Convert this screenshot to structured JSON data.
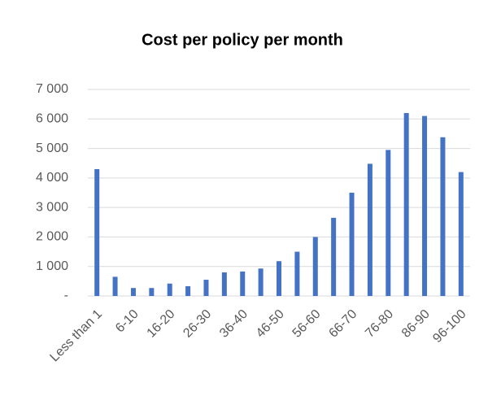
{
  "chart_data": {
    "type": "bar",
    "title": "Cost per policy per month",
    "categories": [
      "Less than 1",
      null,
      "6-10",
      null,
      "16-20",
      null,
      "26-30",
      null,
      "36-40",
      null,
      "46-50",
      null,
      "56-60",
      null,
      "66-70",
      null,
      "76-80",
      null,
      "86-90",
      null,
      "96-100"
    ],
    "values": [
      4300,
      650,
      270,
      270,
      420,
      330,
      550,
      800,
      830,
      930,
      1180,
      1500,
      2000,
      2650,
      3500,
      4480,
      4950,
      6200,
      6100,
      5380,
      4200
    ],
    "color": "#4472c4",
    "ylim": [
      0,
      7000
    ],
    "yticks": [
      {
        "value": 0,
        "label": "-"
      },
      {
        "value": 1000,
        "label": "1 000"
      },
      {
        "value": 2000,
        "label": "2 000"
      },
      {
        "value": 3000,
        "label": "3 000"
      },
      {
        "value": 4000,
        "label": "4 000"
      },
      {
        "value": 5000,
        "label": "5 000"
      },
      {
        "value": 6000,
        "label": "6 000"
      },
      {
        "value": 7000,
        "label": "7 000"
      }
    ],
    "grid": true
  }
}
